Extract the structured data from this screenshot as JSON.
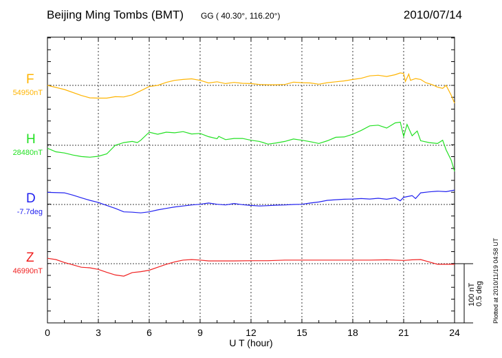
{
  "header": {
    "title": "Beijing Ming Tombs (BMT)",
    "coords": "GG ( 40.30°, 116.20°)",
    "date": "2010/07/14"
  },
  "scale_bar": {
    "line1": "100 nT",
    "line2": "0.5 deg"
  },
  "plotted_at": "Plotted at 2010/11/19 04:58 UT",
  "chart_data": {
    "type": "line",
    "title": "Beijing Ming Tombs (BMT)",
    "xlabel": "U T (hour)",
    "xlim": [
      0,
      24
    ],
    "xticks": [
      "0",
      "3",
      "6",
      "9",
      "12",
      "15",
      "18",
      "21",
      "24"
    ],
    "grid": true,
    "series": [
      {
        "name": "F",
        "baseline_label": "54950nT",
        "unit": "nT",
        "color": "#ffb400",
        "x": [
          0,
          1,
          2,
          2.5,
          3,
          3.5,
          4,
          4.5,
          5,
          5.5,
          6,
          6.5,
          7,
          7.5,
          8,
          8.5,
          9,
          9.5,
          10,
          10.5,
          11,
          11.5,
          12,
          12.5,
          13,
          13.5,
          14,
          14.5,
          15,
          15.5,
          16,
          16.5,
          17,
          17.5,
          18,
          18.5,
          19,
          19.5,
          20,
          20.5,
          20.8,
          21,
          21.1,
          21.3,
          21.4,
          21.7,
          22,
          22.3,
          22.7,
          23,
          23.3,
          23.5,
          23.8,
          24
        ],
        "y": [
          0,
          -7,
          -17,
          -21,
          -21.5,
          -21.5,
          -19,
          -19.5,
          -16,
          -9,
          -2,
          0,
          5,
          8.5,
          10,
          11,
          8.5,
          4,
          6,
          3,
          5,
          3.5,
          3,
          1.5,
          1,
          1,
          1.5,
          5.5,
          4.5,
          4,
          2,
          4.5,
          6,
          7.5,
          10,
          12,
          16,
          17,
          15,
          18,
          21,
          20,
          6.5,
          19,
          8.5,
          11.5,
          10,
          4.5,
          1,
          -3,
          -5,
          0,
          -16.5,
          -30
        ]
      },
      {
        "name": "H",
        "baseline_label": "28480nT",
        "unit": "nT",
        "color": "#22e022",
        "x": [
          0,
          0.5,
          1,
          1.5,
          2,
          2.5,
          3,
          3.5,
          4,
          4.5,
          5,
          5.3,
          5.5,
          6,
          6.5,
          7,
          7.5,
          8,
          8.5,
          9,
          9.5,
          10,
          10.1,
          10.5,
          11,
          11.5,
          12,
          12.5,
          13,
          13.5,
          14,
          14.5,
          15,
          15.5,
          16,
          16.5,
          17,
          17.5,
          18,
          18.5,
          19,
          19.5,
          20,
          20.5,
          20.8,
          21,
          21.2,
          21.5,
          21.8,
          22,
          22.5,
          23,
          23.3,
          23.5,
          23.8,
          24
        ],
        "y": [
          -5,
          -11,
          -13,
          -16.5,
          -19,
          -20,
          -18.5,
          -14.5,
          0,
          4.5,
          6.5,
          4.5,
          8.5,
          22,
          18.5,
          22,
          21,
          23,
          19,
          20,
          14.5,
          11,
          15,
          9.5,
          11.5,
          11.5,
          8.5,
          6.5,
          2,
          4,
          6.5,
          10.5,
          8.5,
          6,
          3,
          7.5,
          13.5,
          14,
          18.5,
          25,
          32.7,
          33.8,
          29,
          37.7,
          39,
          15,
          35,
          16,
          24,
          7.7,
          4.5,
          3,
          8.5,
          -7.7,
          -25,
          -44
        ]
      },
      {
        "name": "D",
        "baseline_label": "-7.7deg",
        "unit": "deg",
        "color": "#2020f0",
        "x": [
          0,
          1,
          1.5,
          2,
          2.5,
          3,
          3.5,
          4,
          4.5,
          5,
          5.5,
          6,
          6.5,
          7,
          7.5,
          8,
          8.5,
          9,
          9.5,
          10,
          10.5,
          11,
          11.5,
          12,
          12.5,
          13,
          13.5,
          14,
          14.5,
          15,
          15.5,
          16,
          16.5,
          17,
          17.5,
          18,
          18.5,
          19,
          19.5,
          20,
          20.5,
          20.8,
          21,
          21.5,
          21.7,
          22,
          22.5,
          23,
          23.5,
          24
        ],
        "y": [
          0.102,
          0.098,
          0.079,
          0.056,
          0.035,
          0.017,
          -0.008,
          -0.033,
          -0.062,
          -0.065,
          -0.071,
          -0.062,
          -0.046,
          -0.033,
          -0.021,
          -0.013,
          -0.004,
          0.002,
          0.012,
          0.002,
          -0.004,
          0.008,
          -0.002,
          -0.008,
          -0.013,
          -0.01,
          -0.006,
          -0.004,
          0,
          0.002,
          0.012,
          0.021,
          0.035,
          0.04,
          0.044,
          0.046,
          0.05,
          0.046,
          0.052,
          0.044,
          0.056,
          0.031,
          0.06,
          0.075,
          0.05,
          0.098,
          0.106,
          0.112,
          0.108,
          0.121
        ]
      },
      {
        "name": "Z",
        "baseline_label": "46990nT",
        "unit": "nT",
        "color": "#f02020",
        "x": [
          0,
          0.5,
          1,
          1.5,
          2,
          2.5,
          3,
          3.5,
          4,
          4.5,
          5,
          5.5,
          6,
          6.5,
          7,
          7.5,
          8,
          8.5,
          9,
          9.5,
          10,
          11,
          12,
          13,
          14,
          15,
          16,
          17,
          18,
          19,
          20,
          21,
          21.5,
          22,
          22.5,
          23,
          24
        ],
        "y": [
          9,
          7,
          2,
          -2,
          -6,
          -7,
          -9.6,
          -14.6,
          -19,
          -21,
          -15,
          -13.5,
          -11,
          -6,
          -1,
          3,
          6,
          7,
          6,
          4.6,
          4.6,
          4.6,
          5,
          5,
          6,
          6,
          6,
          6,
          6,
          6,
          6.5,
          5.5,
          6.5,
          7,
          3,
          -1,
          -1
        ]
      }
    ]
  }
}
